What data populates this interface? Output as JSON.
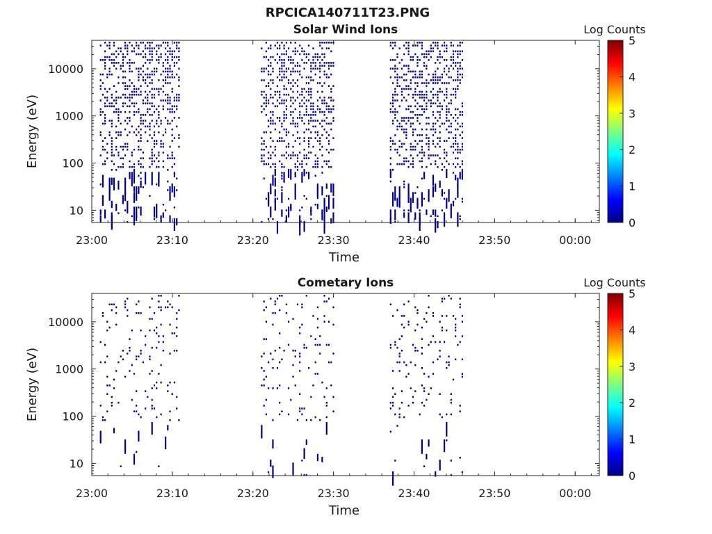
{
  "title": "RPCICA140711T23.PNG",
  "chart_data": [
    {
      "type": "heatmap",
      "title": "Solar Wind Ions",
      "xlabel": "Time",
      "ylabel": "Energy (eV)",
      "x_ticks": [
        "23:00",
        "23:10",
        "23:20",
        "23:30",
        "23:40",
        "23:50",
        "00:00"
      ],
      "y_ticks": [
        "10",
        "100",
        "1000",
        "10000"
      ],
      "y_scale": "log",
      "ylim": [
        5.5,
        40000
      ],
      "xlim_minutes": [
        0,
        63
      ],
      "colorbar": {
        "label": "Log Counts",
        "ticks": [
          "0",
          "1",
          "2",
          "3",
          "4",
          "5"
        ],
        "range": [
          0,
          5
        ]
      },
      "activity_intervals": [
        {
          "start": "23:01",
          "end": "23:11"
        },
        {
          "start": "23:21",
          "end": "23:30"
        },
        {
          "start": "23:37",
          "end": "23:46"
        }
      ],
      "typical_log_counts": 0.1,
      "color": "#00008f"
    },
    {
      "type": "heatmap",
      "title": "Cometary Ions",
      "xlabel": "Time",
      "ylabel": "Energy (eV)",
      "x_ticks": [
        "23:00",
        "23:10",
        "23:20",
        "23:30",
        "23:40",
        "23:50",
        "00:00"
      ],
      "y_ticks": [
        "10",
        "100",
        "1000",
        "10000"
      ],
      "y_scale": "log",
      "ylim": [
        5.5,
        40000
      ],
      "xlim_minutes": [
        0,
        63
      ],
      "colorbar": {
        "label": "Log Counts",
        "ticks": [
          "0",
          "1",
          "2",
          "3",
          "4",
          "5"
        ],
        "range": [
          0,
          5
        ]
      },
      "activity_intervals": [
        {
          "start": "23:01",
          "end": "23:11"
        },
        {
          "start": "23:21",
          "end": "23:30"
        },
        {
          "start": "23:37",
          "end": "23:46"
        }
      ],
      "typical_log_counts": 0.1,
      "color": "#00008f"
    }
  ]
}
